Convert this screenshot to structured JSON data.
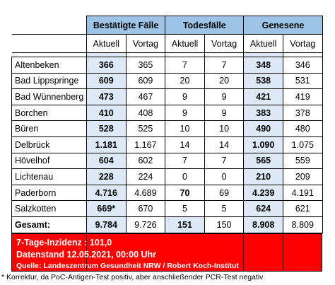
{
  "headers": {
    "groups": [
      "Bestätigte Fälle",
      "Todesfälle",
      "Genesene"
    ],
    "subcolumns": [
      "Aktuell",
      "Vortag",
      "Aktuell",
      "Vortag",
      "Aktuell",
      "Vortag"
    ]
  },
  "rows": [
    {
      "name": "Altenbeken",
      "values": [
        "366",
        "365",
        "7",
        "7",
        "348",
        "346"
      ]
    },
    {
      "name": "Bad Lippspringe",
      "values": [
        "609",
        "609",
        "20",
        "20",
        "538",
        "531"
      ]
    },
    {
      "name": "Bad Wünnenberg",
      "values": [
        "473",
        "467",
        "9",
        "9",
        "421",
        "419"
      ]
    },
    {
      "name": "Borchen",
      "values": [
        "410",
        "408",
        "9",
        "9",
        "383",
        "378"
      ]
    },
    {
      "name": "Büren",
      "values": [
        "528",
        "525",
        "10",
        "10",
        "490",
        "480"
      ]
    },
    {
      "name": "Delbrück",
      "values": [
        "1.181",
        "1.167",
        "14",
        "14",
        "1.090",
        "1.075"
      ]
    },
    {
      "name": "Hövelhof",
      "values": [
        "604",
        "602",
        "7",
        "7",
        "565",
        "559"
      ]
    },
    {
      "name": "Lichtenau",
      "values": [
        "228",
        "224",
        "0",
        "0",
        "210",
        "209"
      ]
    },
    {
      "name": "Paderborn",
      "values": [
        "4.716",
        "4.689",
        "70",
        "69",
        "4.239",
        "4.191"
      ]
    },
    {
      "name": "Salzkotten",
      "values": [
        "669*",
        "670",
        "5",
        "5",
        "624",
        "621"
      ]
    }
  ],
  "total": {
    "name": "Gesamt:",
    "values": [
      "9.784",
      "9.726",
      "151",
      "150",
      "8.908",
      "8.809"
    ]
  },
  "footer": {
    "incidence": "7-Tage-Inzidenz : 101,0",
    "date": "Datenstand 12.05.2021, 00:00 Uhr",
    "source": "Quelle: Landeszentrum Gesundheit NRW / Robert Koch-Institut"
  },
  "footnote": "* Korrektur, da PoC-Antigen-Test positiv, aber anschließender PCR-Test negativ",
  "colors": {
    "header_blue": "#9dc3e6",
    "current_value_blue": "#dde9f6",
    "footer_red": "#ff0000"
  }
}
